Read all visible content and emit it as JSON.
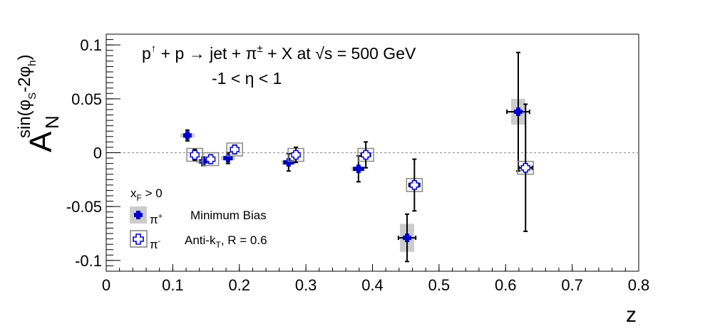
{
  "chart_data": {
    "type": "scatter",
    "xlim": [
      0,
      0.8
    ],
    "ylim": [
      -0.11,
      0.11
    ],
    "xlabel": "z",
    "ylabel": {
      "main": "A",
      "sub": "N",
      "sup": "sin(φ",
      "sup_sub1": "S",
      "sup_mid": "-2φ",
      "sup_sub2": "h",
      "sup_end": ")"
    },
    "x_ticks": [
      0,
      0.1,
      0.2,
      0.3,
      0.4,
      0.5,
      0.6,
      0.7,
      0.8
    ],
    "x_tick_labels": [
      "0",
      "0.1",
      "0.2",
      "0.3",
      "0.4",
      "0.5",
      "0.6",
      "0.7",
      "0.8"
    ],
    "y_ticks": [
      0.1,
      0.05,
      0,
      -0.05,
      -0.1
    ],
    "y_tick_labels": [
      "0.1",
      "0.05",
      "0",
      "-0.05",
      "-0.1"
    ],
    "zero_line": true,
    "title": {
      "p1": "p",
      "p1_sup": "↑",
      "rest": " + p → jet + π",
      "pi_sup": "±",
      "rest2": " + X at  ",
      "sqrt_s": "√s",
      "energy": " = 500 GeV",
      "line2": "-1 < η < 1"
    },
    "legend": {
      "header": "x",
      "header_sub": "F",
      "header_rest": " > 0",
      "entries": [
        {
          "label": "π",
          "sup": "+",
          "note": "Minimum Bias"
        },
        {
          "label": "π",
          "sup": "-",
          "note": "Anti-k",
          "note_sub": "T",
          "note_rest": ", R = 0.6"
        }
      ]
    },
    "series": [
      {
        "name": "π+",
        "marker": "filled-cross",
        "color": "#0000cc",
        "points": [
          {
            "x": 0.122,
            "y": 0.016,
            "xerr": 0.004,
            "yerr": 0.005,
            "sys": 0.002
          },
          {
            "x": 0.146,
            "y": -0.008,
            "xerr": 0.005,
            "yerr": 0.004,
            "sys": 0.002
          },
          {
            "x": 0.183,
            "y": -0.005,
            "xerr": 0.006,
            "yerr": 0.005,
            "sys": 0.002
          },
          {
            "x": 0.274,
            "y": -0.009,
            "xerr": 0.007,
            "yerr": 0.008,
            "sys": 0.002
          },
          {
            "x": 0.379,
            "y": -0.015,
            "xerr": 0.007,
            "yerr": 0.012,
            "sys": 0.002
          },
          {
            "x": 0.452,
            "y": -0.079,
            "xerr": 0.013,
            "yerr": 0.022,
            "sys": 0.013
          },
          {
            "x": 0.619,
            "y": 0.038,
            "xerr": 0.017,
            "yerr": 0.055,
            "sys": 0.012
          }
        ]
      },
      {
        "name": "π-",
        "marker": "open-cross",
        "color": "#0000cc",
        "points": [
          {
            "x": 0.133,
            "y": -0.002,
            "xerr": 0.004,
            "yerr": 0.005,
            "sys": 0.002
          },
          {
            "x": 0.157,
            "y": -0.006,
            "xerr": 0.005,
            "yerr": 0.004,
            "sys": 0.002
          },
          {
            "x": 0.193,
            "y": 0.003,
            "xerr": 0.005,
            "yerr": 0.004,
            "sys": 0.002
          },
          {
            "x": 0.285,
            "y": -0.002,
            "xerr": 0.006,
            "yerr": 0.007,
            "sys": 0.002
          },
          {
            "x": 0.39,
            "y": -0.002,
            "xerr": 0.007,
            "yerr": 0.012,
            "sys": 0.002
          },
          {
            "x": 0.463,
            "y": -0.03,
            "xerr": 0.008,
            "yerr": 0.024,
            "sys": 0.006
          },
          {
            "x": 0.63,
            "y": -0.014,
            "xerr": 0.01,
            "yerr": 0.059,
            "sys": 0.003
          }
        ]
      }
    ]
  }
}
